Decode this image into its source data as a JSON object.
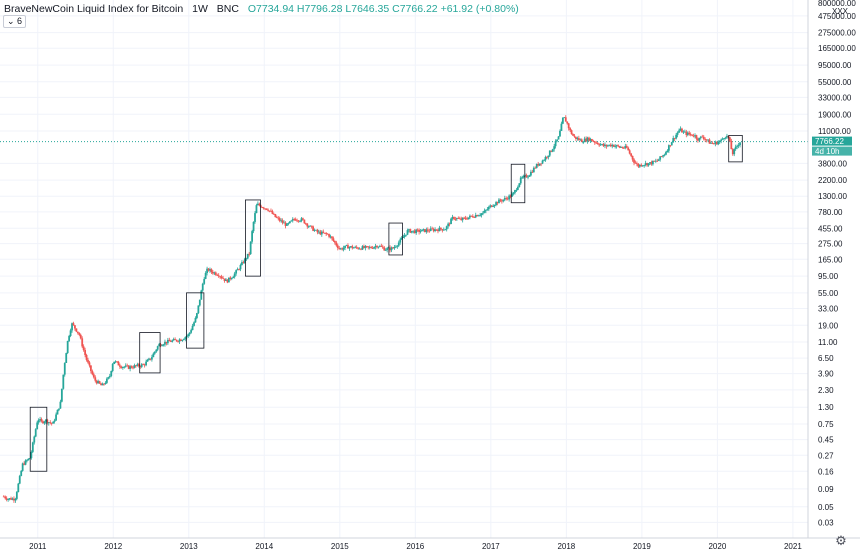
{
  "header": {
    "symbol": "BraveNewCoin Liquid Index for Bitcoin",
    "interval": "1W",
    "exchange": "BNC",
    "open": "O7734.94",
    "high": "H7796.28",
    "low": "L7646.35",
    "close": "C7766.22",
    "change": "+61.92 (+0.80%)"
  },
  "indicator_toggle": "6",
  "axis": {
    "top_label": "800000.00",
    "top_label2": "XXX",
    "price_badge": "7766.22",
    "time_badge": "4d 10h"
  },
  "colors": {
    "up": "#26a69a",
    "down": "#ef5350",
    "grid": "#f0f3fa",
    "last_price": "#26a69a"
  },
  "chart_data": {
    "type": "candlestick",
    "scale": "log",
    "yticks": [
      "475000.00",
      "275000.00",
      "165000.00",
      "95000.00",
      "55000.00",
      "33000.00",
      "19000.00",
      "11000.00",
      "3800.00",
      "2200.00",
      "1300.00",
      "780.00",
      "455.00",
      "275.00",
      "165.00",
      "95.00",
      "55.00",
      "33.00",
      "19.00",
      "11.00",
      "6.50",
      "3.90",
      "2.30",
      "1.30",
      "0.75",
      "0.45",
      "0.27",
      "0.16",
      "0.09",
      "0.05",
      "0.03"
    ],
    "ytick_values": [
      475000,
      275000,
      165000,
      95000,
      55000,
      33000,
      19000,
      11000,
      3800,
      2200,
      1300,
      780,
      455,
      275,
      165,
      95,
      55,
      33,
      19,
      11,
      6.5,
      3.9,
      2.3,
      1.3,
      0.75,
      0.45,
      0.27,
      0.16,
      0.09,
      0.05,
      0.03
    ],
    "xticks": [
      "2011",
      "2012",
      "2013",
      "2014",
      "2015",
      "2016",
      "2017",
      "2018",
      "2019",
      "2020",
      "2021"
    ],
    "xtick_values": [
      2011,
      2012,
      2013,
      2014,
      2015,
      2016,
      2017,
      2018,
      2019,
      2020,
      2021
    ],
    "xlim": [
      2010.5,
      2021.2
    ],
    "ylim": [
      0.018,
      800000
    ],
    "last_price": 7766.22,
    "series": [
      [
        2010.55,
        0.07
      ],
      [
        2010.6,
        0.065
      ],
      [
        2010.7,
        0.065
      ],
      [
        2010.8,
        0.2
      ],
      [
        2010.9,
        0.25
      ],
      [
        2011.0,
        0.9
      ],
      [
        2011.05,
        0.8
      ],
      [
        2011.1,
        0.85
      ],
      [
        2011.2,
        0.75
      ],
      [
        2011.3,
        1.5
      ],
      [
        2011.35,
        5
      ],
      [
        2011.4,
        12
      ],
      [
        2011.45,
        20
      ],
      [
        2011.5,
        17
      ],
      [
        2011.55,
        14
      ],
      [
        2011.6,
        9
      ],
      [
        2011.65,
        6
      ],
      [
        2011.75,
        3.2
      ],
      [
        2011.85,
        2.6
      ],
      [
        2011.95,
        3.5
      ],
      [
        2012.0,
        6
      ],
      [
        2012.1,
        5
      ],
      [
        2012.2,
        4.8
      ],
      [
        2012.3,
        5
      ],
      [
        2012.4,
        5.2
      ],
      [
        2012.5,
        6.5
      ],
      [
        2012.6,
        10
      ],
      [
        2012.7,
        11
      ],
      [
        2012.8,
        11.5
      ],
      [
        2012.9,
        12
      ],
      [
        2013.0,
        14
      ],
      [
        2013.1,
        25
      ],
      [
        2013.2,
        90
      ],
      [
        2013.25,
        120
      ],
      [
        2013.3,
        110
      ],
      [
        2013.4,
        100
      ],
      [
        2013.5,
        80
      ],
      [
        2013.6,
        100
      ],
      [
        2013.7,
        140
      ],
      [
        2013.8,
        200
      ],
      [
        2013.85,
        500
      ],
      [
        2013.9,
        1000
      ],
      [
        2013.95,
        950
      ],
      [
        2014.05,
        850
      ],
      [
        2014.15,
        650
      ],
      [
        2014.3,
        500
      ],
      [
        2014.4,
        620
      ],
      [
        2014.5,
        600
      ],
      [
        2014.6,
        480
      ],
      [
        2014.7,
        400
      ],
      [
        2014.85,
        370
      ],
      [
        2015.0,
        230
      ],
      [
        2015.1,
        250
      ],
      [
        2015.2,
        240
      ],
      [
        2015.4,
        240
      ],
      [
        2015.5,
        260
      ],
      [
        2015.6,
        230
      ],
      [
        2015.7,
        235
      ],
      [
        2015.8,
        300
      ],
      [
        2015.9,
        420
      ],
      [
        2016.0,
        410
      ],
      [
        2016.2,
        430
      ],
      [
        2016.4,
        450
      ],
      [
        2016.5,
        650
      ],
      [
        2016.6,
        600
      ],
      [
        2016.8,
        700
      ],
      [
        2016.9,
        750
      ],
      [
        2017.0,
        950
      ],
      [
        2017.1,
        1100
      ],
      [
        2017.2,
        1200
      ],
      [
        2017.3,
        1400
      ],
      [
        2017.4,
        2300
      ],
      [
        2017.5,
        2600
      ],
      [
        2017.6,
        3500
      ],
      [
        2017.7,
        4300
      ],
      [
        2017.8,
        5800
      ],
      [
        2017.9,
        9000
      ],
      [
        2017.96,
        17500
      ],
      [
        2018.0,
        15000
      ],
      [
        2018.05,
        11000
      ],
      [
        2018.1,
        9000
      ],
      [
        2018.2,
        8000
      ],
      [
        2018.3,
        8500
      ],
      [
        2018.4,
        7500
      ],
      [
        2018.5,
        6700
      ],
      [
        2018.6,
        7000
      ],
      [
        2018.7,
        6500
      ],
      [
        2018.8,
        6300
      ],
      [
        2018.9,
        4000
      ],
      [
        2018.95,
        3500
      ],
      [
        2019.0,
        3700
      ],
      [
        2019.1,
        3800
      ],
      [
        2019.2,
        4100
      ],
      [
        2019.3,
        5200
      ],
      [
        2019.4,
        8000
      ],
      [
        2019.5,
        11500
      ],
      [
        2019.55,
        10500
      ],
      [
        2019.6,
        10000
      ],
      [
        2019.7,
        9500
      ],
      [
        2019.75,
        8300
      ],
      [
        2019.8,
        9200
      ],
      [
        2019.9,
        7500
      ],
      [
        2019.95,
        7200
      ],
      [
        2020.05,
        8000
      ],
      [
        2020.1,
        9500
      ],
      [
        2020.15,
        8800
      ],
      [
        2020.2,
        5200
      ],
      [
        2020.25,
        6500
      ],
      [
        2020.3,
        7766
      ]
    ],
    "boxes": [
      {
        "x0": 2010.9,
        "x1": 2011.12,
        "lo": 0.16,
        "hi": 1.3
      },
      {
        "x0": 2012.35,
        "x1": 2012.62,
        "lo": 4.0,
        "hi": 15
      },
      {
        "x0": 2012.97,
        "x1": 2013.2,
        "lo": 9,
        "hi": 55
      },
      {
        "x0": 2013.75,
        "x1": 2013.95,
        "lo": 95,
        "hi": 1150
      },
      {
        "x0": 2015.65,
        "x1": 2015.83,
        "lo": 190,
        "hi": 540
      },
      {
        "x0": 2017.27,
        "x1": 2017.45,
        "lo": 1050,
        "hi": 3700
      },
      {
        "x0": 2020.15,
        "x1": 2020.33,
        "lo": 4000,
        "hi": 9500
      }
    ]
  }
}
